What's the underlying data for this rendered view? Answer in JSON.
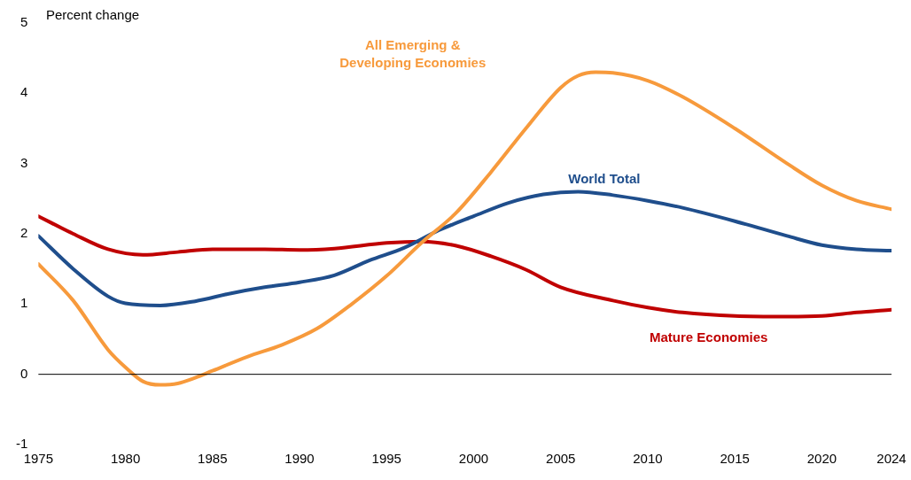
{
  "chart_data": {
    "type": "line",
    "ylabel": "Percent change",
    "xlim": [
      1975,
      2024
    ],
    "xticks": [
      1975,
      1980,
      1985,
      1990,
      1995,
      2000,
      2005,
      2010,
      2015,
      2020,
      2024
    ],
    "ylim": [
      -1,
      5
    ],
    "yticks": [
      -1,
      0,
      1,
      2,
      3,
      4,
      5
    ],
    "grid": false,
    "ref_lines": [
      {
        "axis": "y",
        "value": 0,
        "color": "#000000"
      }
    ],
    "legend": false,
    "marker": "none",
    "line_style": "solid",
    "series": [
      {
        "name": "All Emerging & Developing Economies",
        "color": "#f79a3c",
        "x": [
          1975,
          1977,
          1979,
          1980,
          1981,
          1982,
          1983,
          1984,
          1985,
          1987,
          1989,
          1991,
          1993,
          1995,
          1997,
          1999,
          2001,
          2003,
          2005,
          2006,
          2007,
          2008,
          2010,
          2012,
          2015,
          2018,
          2020,
          2022,
          2024
        ],
        "values": [
          1.57,
          1.05,
          0.35,
          0.1,
          -0.1,
          -0.15,
          -0.13,
          -0.05,
          0.05,
          0.25,
          0.42,
          0.65,
          1.0,
          1.4,
          1.87,
          2.3,
          2.88,
          3.5,
          4.08,
          4.25,
          4.3,
          4.29,
          4.18,
          3.95,
          3.5,
          3.0,
          2.69,
          2.47,
          2.35
        ]
      },
      {
        "name": "World Total",
        "color": "#1f4e8c",
        "x": [
          1975,
          1977,
          1979,
          1980,
          1982,
          1984,
          1986,
          1988,
          1990,
          1992,
          1994,
          1996,
          1998,
          2000,
          2002,
          2004,
          2006,
          2008,
          2010,
          2012,
          2015,
          2018,
          2020,
          2022,
          2024
        ],
        "values": [
          1.97,
          1.5,
          1.11,
          1.01,
          0.98,
          1.04,
          1.15,
          1.24,
          1.31,
          1.41,
          1.62,
          1.8,
          2.05,
          2.25,
          2.44,
          2.56,
          2.6,
          2.55,
          2.47,
          2.37,
          2.18,
          1.97,
          1.84,
          1.78,
          1.76
        ]
      },
      {
        "name": "Mature Economies",
        "color": "#c00000",
        "x": [
          1975,
          1977,
          1979,
          1981,
          1983,
          1985,
          1988,
          1990,
          1992,
          1995,
          1997,
          1999,
          2001,
          2003,
          2005,
          2008,
          2010,
          2012,
          2015,
          2018,
          2020,
          2022,
          2024
        ],
        "values": [
          2.25,
          2.0,
          1.78,
          1.7,
          1.74,
          1.78,
          1.78,
          1.77,
          1.79,
          1.87,
          1.89,
          1.83,
          1.68,
          1.49,
          1.24,
          1.05,
          0.95,
          0.88,
          0.83,
          0.82,
          0.83,
          0.88,
          0.92
        ]
      }
    ]
  }
}
